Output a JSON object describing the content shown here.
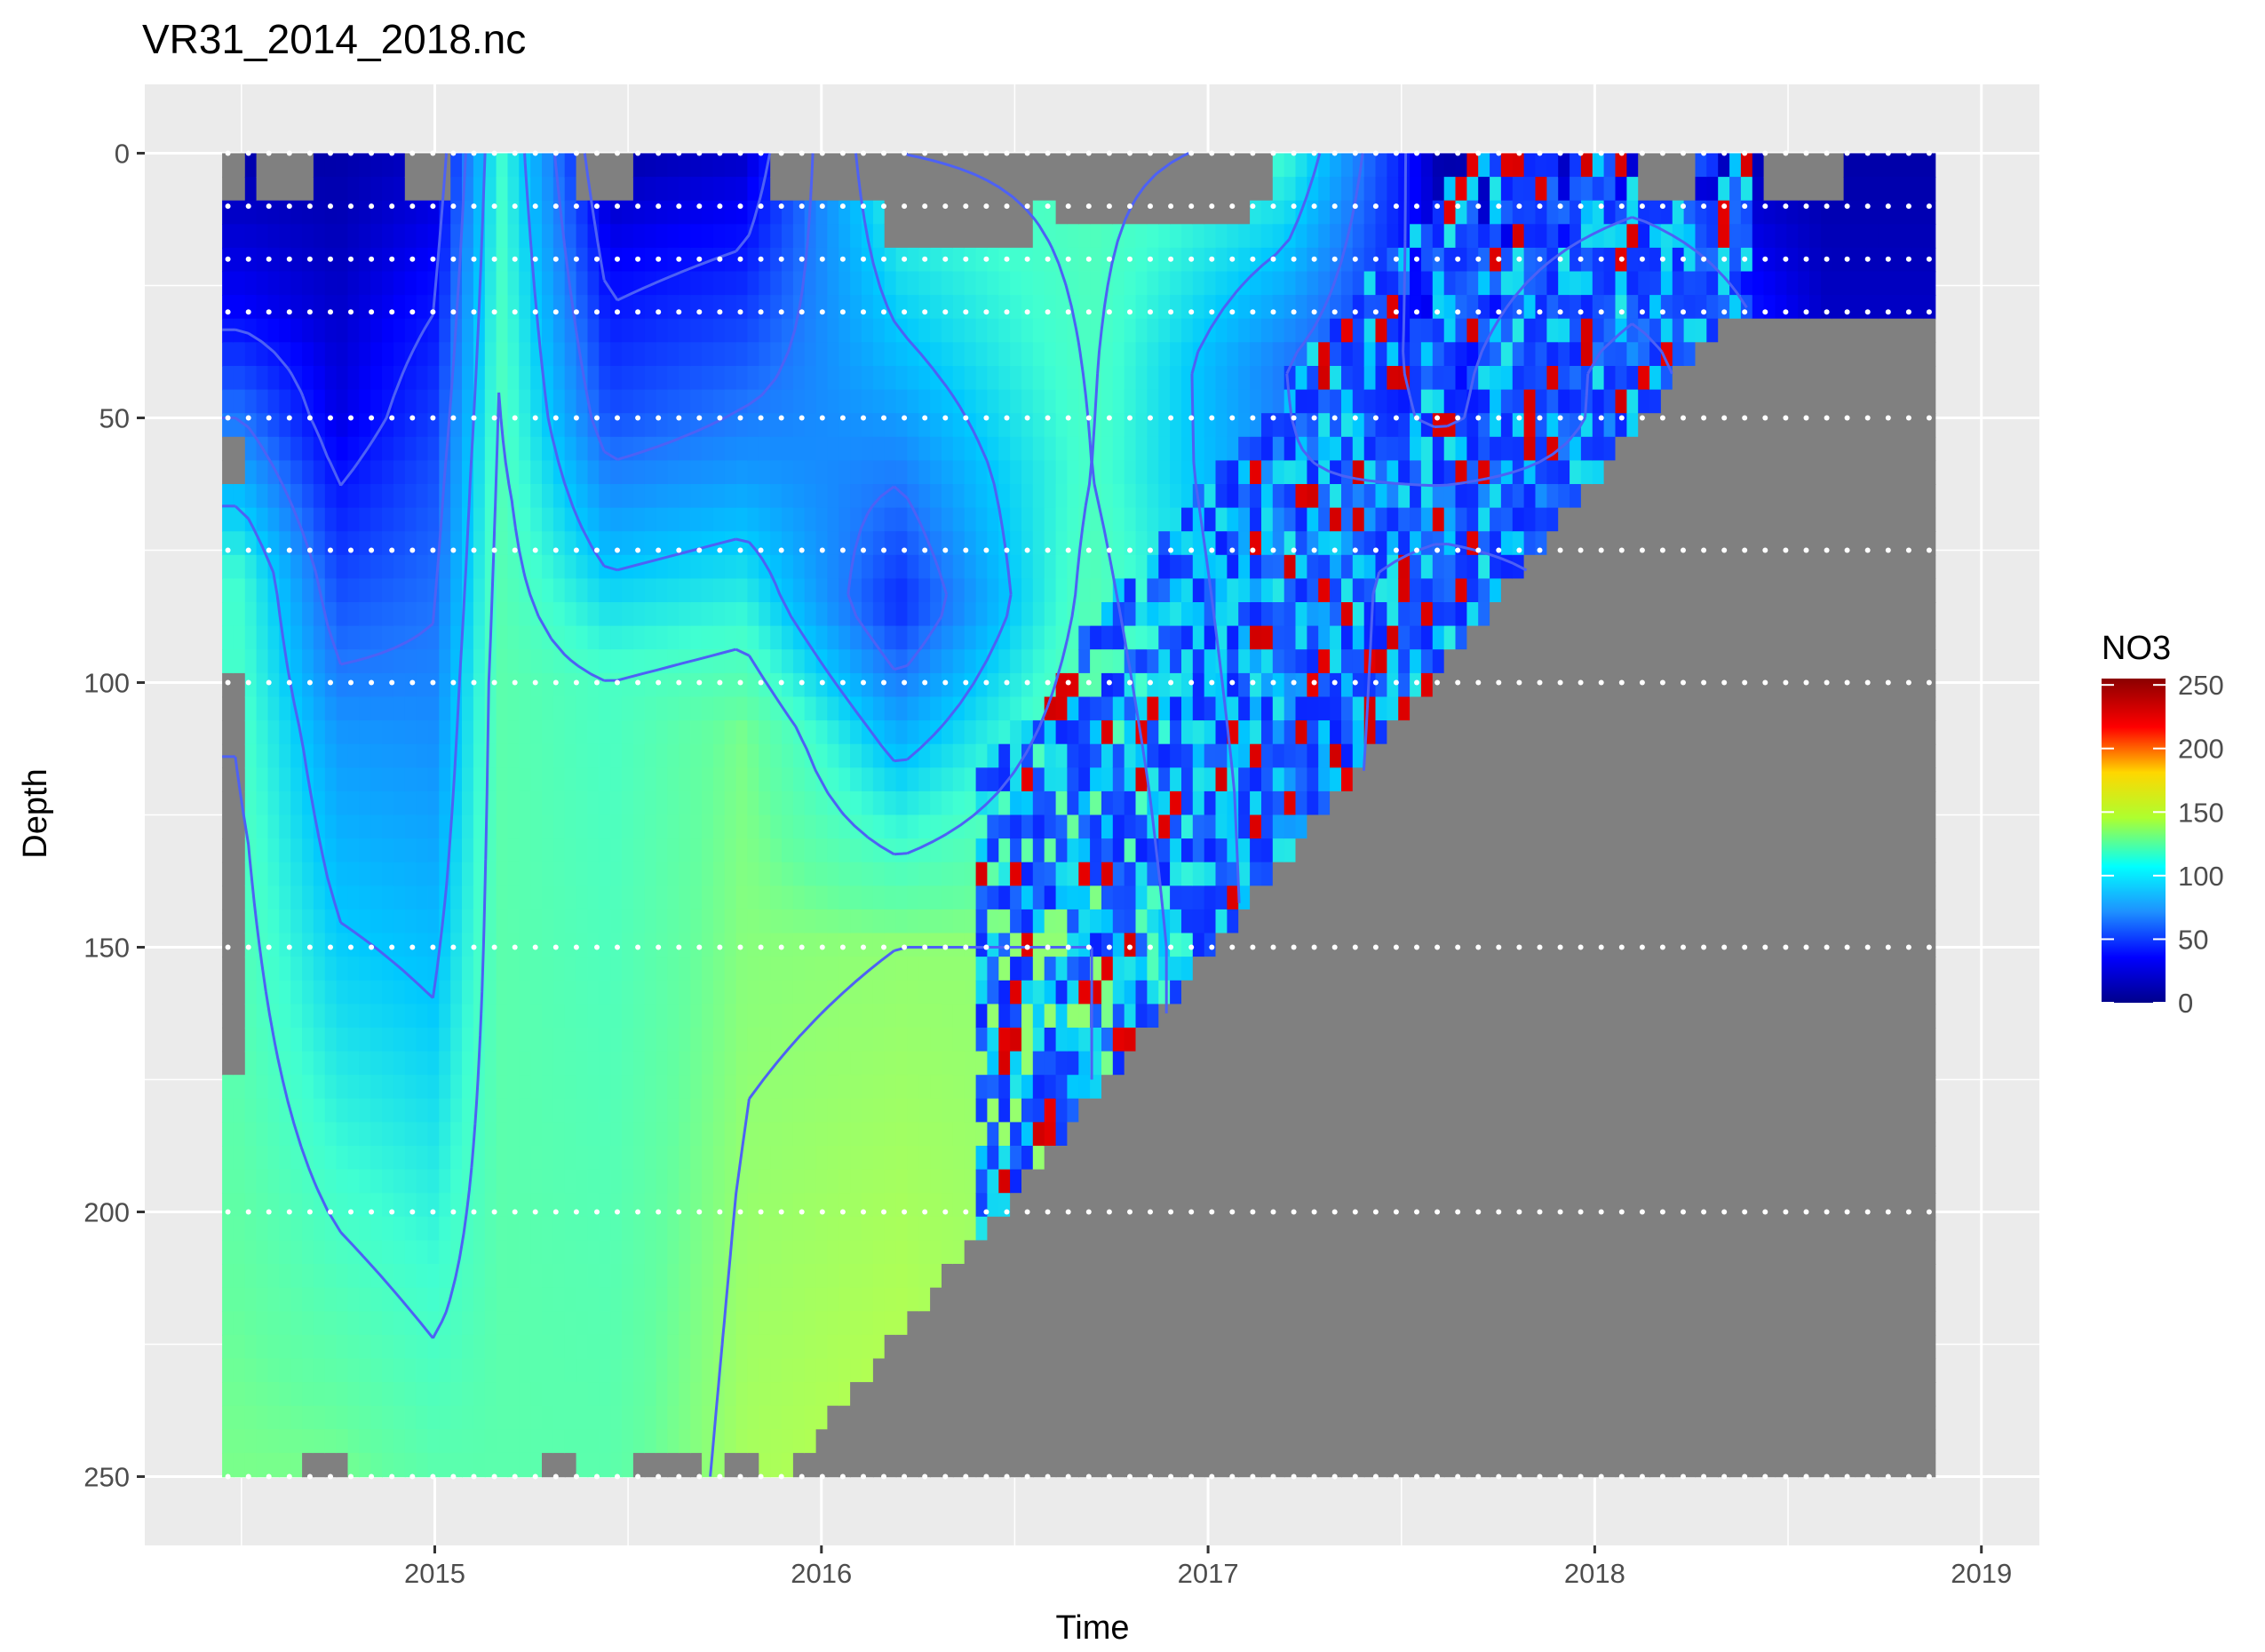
{
  "chart_data": {
    "type": "heatmap",
    "title": "VR31_2014_2018.nc",
    "xlabel": "Time",
    "ylabel": "Depth",
    "xlim": [
      2014.25,
      2019.15
    ],
    "ylim": [
      -13,
      263
    ],
    "y_reversed": true,
    "x_ticks": [
      2015,
      2016,
      2017,
      2018,
      2019
    ],
    "y_ticks": [
      0,
      50,
      100,
      150,
      200,
      250
    ],
    "grid": true,
    "data_extent": {
      "time": [
        2014.45,
        2018.88
      ],
      "depth": [
        0,
        250
      ]
    },
    "sample_depths": [
      0,
      10,
      20,
      30,
      50,
      75,
      100,
      150,
      200,
      250
    ],
    "legend": {
      "title": "NO3",
      "position": "right",
      "range": [
        0,
        255
      ],
      "ticks": [
        0,
        50,
        100,
        150,
        200,
        250
      ],
      "colors": [
        "#00008b",
        "#0000ff",
        "#1e90ff",
        "#00ffff",
        "#ffff00",
        "#ff8c00",
        "#ff0000",
        "#8b0000"
      ]
    },
    "na_color": "#808080",
    "contour_color": "#4d61f5",
    "series": [
      {
        "values": {
          "columns": [
            {
              "t": 2014.5,
              "profile": [
                [
                  0,
                  5
                ],
                [
                  30,
                  20
                ],
                [
                  80,
                  95
                ],
                [
                  250,
                  120
                ]
              ]
            },
            {
              "t": 2014.75,
              "profile": [
                [
                  0,
                  5
                ],
                [
                  50,
                  15
                ],
                [
                  110,
                  60
                ],
                [
                  250,
                  120
                ]
              ]
            },
            {
              "t": 2015.0,
              "profile": [
                [
                  0,
                  10
                ],
                [
                  60,
                  40
                ],
                [
                  160,
                  75
                ],
                [
                  250,
                  110
                ]
              ]
            },
            {
              "t": 2015.17,
              "profile": [
                [
                  0,
                  95
                ],
                [
                  100,
                  110
                ],
                [
                  250,
                  110
                ]
              ]
            },
            {
              "t": 2015.45,
              "profile": [
                [
                  0,
                  5
                ],
                [
                  50,
                  40
                ],
                [
                  100,
                  100
                ],
                [
                  250,
                  110
                ]
              ]
            },
            {
              "t": 2015.8,
              "profile": [
                [
                  0,
                  10
                ],
                [
                  60,
                  60
                ],
                [
                  110,
                  120
                ],
                [
                  250,
                  130
                ]
              ]
            },
            {
              "t": 2016.2,
              "profile": [
                [
                  0,
                  100
                ],
                [
                  40,
                  70
                ],
                [
                  85,
                  30
                ],
                [
                  150,
                  125
                ],
                [
                  250,
                  135
                ]
              ]
            },
            {
              "t": 2016.7,
              "profile": [
                [
                  0,
                  105
                ],
                [
                  60,
                  100
                ],
                [
                  150,
                  125
                ]
              ]
            },
            {
              "t": 2017.2,
              "profile": [
                [
                  0,
                  95
                ],
                [
                  40,
                  50
                ],
                [
                  120,
                  60
                ]
              ]
            },
            {
              "t": 2017.6,
              "profile": [
                [
                  0,
                  5
                ],
                [
                  50,
                  20
                ],
                [
                  80,
                  90
                ]
              ]
            },
            {
              "t": 2018.1,
              "profile": [
                [
                  0,
                  10
                ],
                [
                  40,
                  60
                ]
              ]
            },
            {
              "t": 2018.6,
              "profile": [
                [
                  0,
                  5
                ],
                [
                  30,
                  10
                ]
              ]
            }
          ]
        }
      }
    ]
  }
}
